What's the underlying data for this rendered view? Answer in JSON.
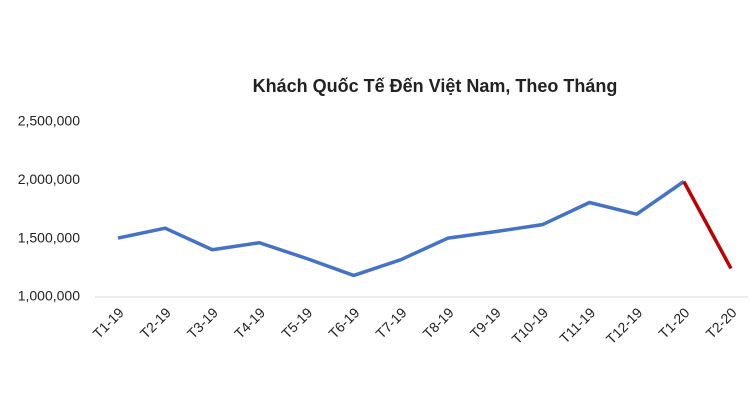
{
  "chart_data": {
    "type": "line",
    "title": "Khách Quốc Tế Đến Việt Nam, Theo Tháng",
    "categories": [
      "T1-19",
      "T2-19",
      "T3-19",
      "T4-19",
      "T5-19",
      "T6-19",
      "T7-19",
      "T8-19",
      "T9-19",
      "T10-19",
      "T11-19",
      "T12-19",
      "T1-20",
      "T2-20"
    ],
    "series": [
      {
        "color": "#4472c4",
        "values": [
          1505000,
          1590000,
          1405000,
          1465000,
          1330000,
          1185000,
          1320000,
          1505000,
          1560000,
          1620000,
          1810000,
          1710000,
          1990000,
          null
        ]
      },
      {
        "color": "#c00000",
        "values": [
          null,
          null,
          null,
          null,
          null,
          null,
          null,
          null,
          null,
          null,
          null,
          null,
          1990000,
          1245000
        ]
      }
    ],
    "ylim": [
      1000000,
      2500000
    ],
    "yticks": [
      {
        "value": 1000000,
        "label": "1,000,000"
      },
      {
        "value": 1500000,
        "label": "1,500,000"
      },
      {
        "value": 2000000,
        "label": "2,000,000"
      },
      {
        "value": 2500000,
        "label": "2,500,000"
      }
    ],
    "grid": false
  }
}
